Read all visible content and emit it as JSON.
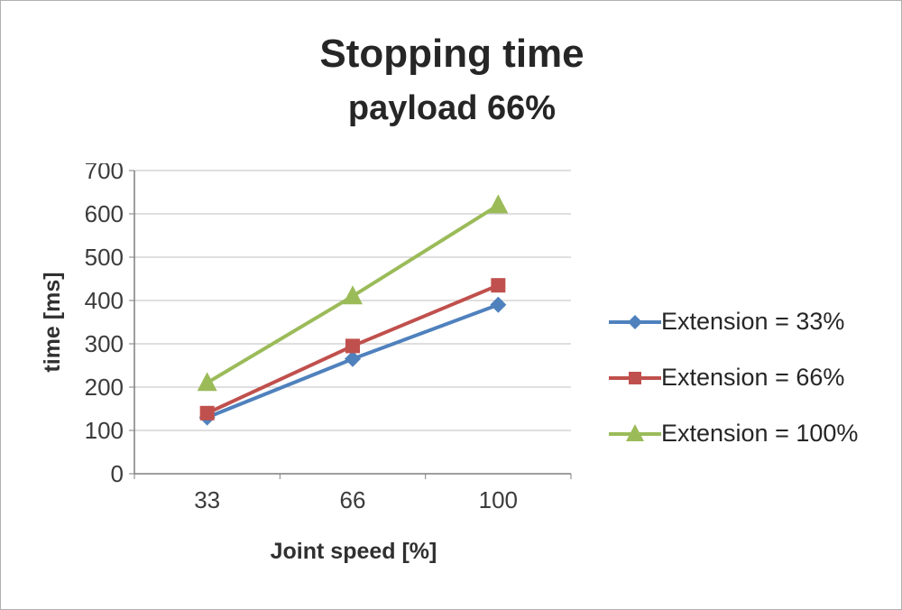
{
  "title": "Stopping time",
  "subtitle": "payload 66%",
  "chart_data": {
    "type": "line",
    "x": [
      "33",
      "66",
      "100"
    ],
    "xlabel": "Joint speed [%]",
    "ylabel": "time [ms]",
    "ylim": [
      0,
      700
    ],
    "ytick_step": 100,
    "grid": true,
    "legend_position": "right",
    "series": [
      {
        "name": "Extension = 33%",
        "marker": "diamond",
        "color": "#4F81BD",
        "values": [
          130,
          265,
          390
        ]
      },
      {
        "name": "Extension = 66%",
        "marker": "square",
        "color": "#C0504D",
        "values": [
          140,
          295,
          435
        ]
      },
      {
        "name": "Extension = 100%",
        "marker": "triangle",
        "color": "#9BBB59",
        "values": [
          210,
          410,
          620
        ]
      }
    ]
  },
  "colors": {
    "gridline": "#bfbfbf",
    "axis": "#7f7f7f",
    "tick_text": "#3b3b3b"
  }
}
